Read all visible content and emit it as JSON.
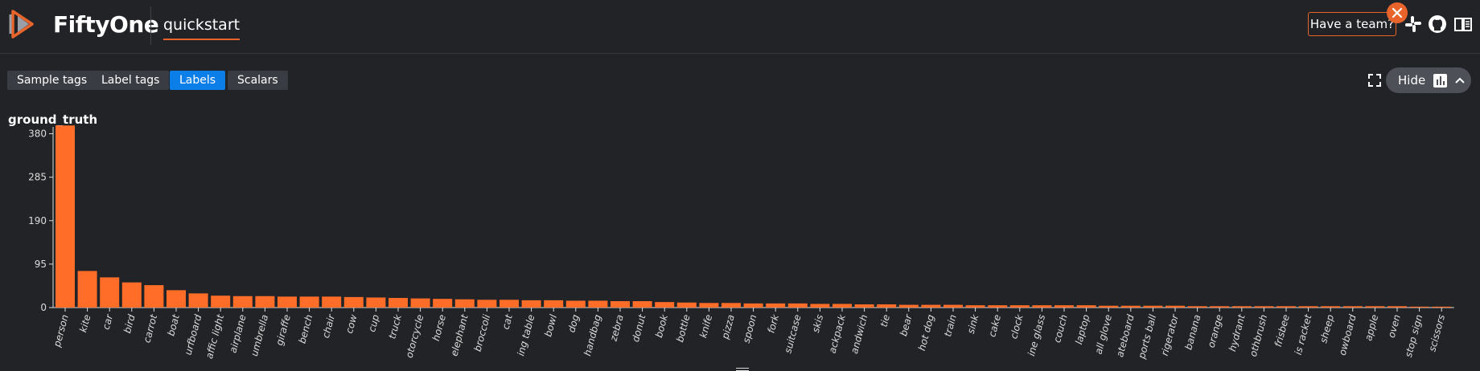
{
  "app": {
    "name": "FiftyOne",
    "dataset": "quickstart"
  },
  "header": {
    "team_label": "Have a team?",
    "icons": [
      "slack-icon",
      "github-icon",
      "docs-icon"
    ]
  },
  "toolbar": {
    "tabs": [
      {
        "label": "Sample tags",
        "active": false
      },
      {
        "label": "Label tags",
        "active": false
      },
      {
        "label": "Labels",
        "active": true
      },
      {
        "label": "Scalars",
        "active": false
      }
    ],
    "hide_label": "Hide"
  },
  "colors": {
    "accent": "#ff6d29",
    "background": "#212327",
    "active_tab": "#0c7ee8",
    "axis_text": "#dcdcdc"
  },
  "chart_data": {
    "type": "bar",
    "title": "ground_truth",
    "ylim": [
      0,
      395
    ],
    "yticks": [
      0,
      95,
      190,
      285,
      380
    ],
    "categories": [
      "person",
      "kite",
      "car",
      "bird",
      "carrot",
      "boat",
      "surfboard",
      "traffic light",
      "airplane",
      "umbrella",
      "giraffe",
      "bench",
      "chair",
      "cow",
      "cup",
      "truck",
      "motorcycle",
      "horse",
      "elephant",
      "broccoli",
      "cat",
      "dining table",
      "bowl",
      "dog",
      "handbag",
      "zebra",
      "donut",
      "book",
      "bottle",
      "knife",
      "pizza",
      "spoon",
      "fork",
      "suitcase",
      "skis",
      "backpack",
      "sandwich",
      "tie",
      "bear",
      "hot dog",
      "train",
      "sink",
      "cake",
      "clock",
      "wine glass",
      "couch",
      "laptop",
      "baseball glove",
      "skateboard",
      "sports ball",
      "refrigerator",
      "banana",
      "orange",
      "fire hydrant",
      "toothbrush",
      "frisbee",
      "tennis racket",
      "sheep",
      "snowboard",
      "apple",
      "oven",
      "stop sign",
      "scissors"
    ],
    "tick_labels": [
      "person",
      "kite",
      "car",
      "bird",
      "carrot",
      "boat",
      "urfboard",
      "affic light",
      "airplane",
      "umbrella",
      "giraffe",
      "bench",
      "chair",
      "cow",
      "cup",
      "truck",
      "otorcycle",
      "horse",
      "elephant",
      "broccoli",
      "cat",
      "ing table",
      "bowl",
      "dog",
      "handbag",
      "zebra",
      "donut",
      "book",
      "bottle",
      "knife",
      "pizza",
      "spoon",
      "fork",
      "suitcase",
      "skis",
      "ackpack",
      "andwich",
      "tie",
      "bear",
      "hot dog",
      "train",
      "sink",
      "cake",
      "clock",
      "ine glass",
      "couch",
      "laptop",
      "all glove",
      "ateboard",
      "ports ball",
      "rigerator",
      "banana",
      "orange",
      "hydrant",
      "othbrush",
      "frisbee",
      "is racket",
      "sheep",
      "owboard",
      "apple",
      "oven",
      "stop sign",
      "scissors"
    ],
    "values": [
      398,
      80,
      66,
      55,
      49,
      38,
      31,
      26,
      25,
      25,
      24,
      24,
      24,
      23,
      22,
      21,
      20,
      19,
      18,
      17,
      17,
      16,
      16,
      15,
      15,
      14,
      14,
      12,
      11,
      10,
      10,
      9,
      9,
      9,
      8,
      8,
      7,
      7,
      6,
      6,
      6,
      5,
      5,
      5,
      5,
      5,
      5,
      4,
      4,
      4,
      4,
      3,
      3,
      3,
      3,
      3,
      3,
      3,
      3,
      3,
      3,
      2,
      2
    ]
  }
}
